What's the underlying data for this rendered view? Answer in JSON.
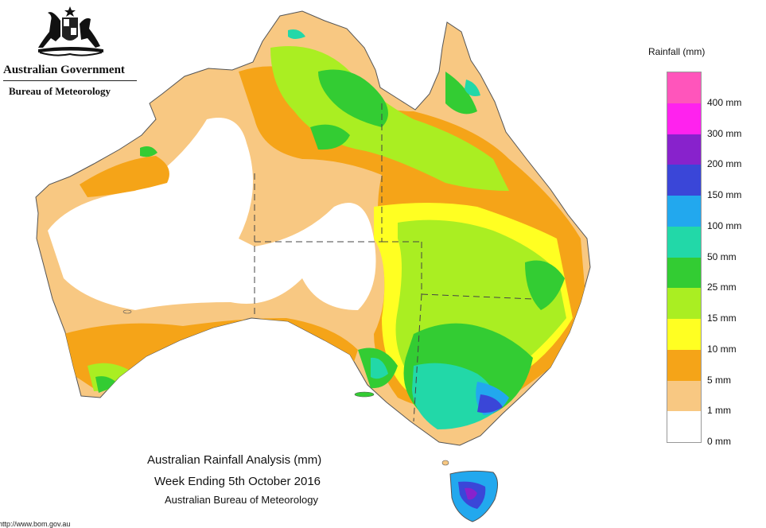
{
  "header": {
    "government": "Australian Government",
    "bureau": "Bureau of Meteorology"
  },
  "legend": {
    "title": "Rainfall (mm)",
    "bins": [
      {
        "label": "400 mm",
        "color": "#ff55bb"
      },
      {
        "label": "300 mm",
        "color": "#ff22ee"
      },
      {
        "label": "200 mm",
        "color": "#8822cc"
      },
      {
        "label": "150 mm",
        "color": "#3a46d8"
      },
      {
        "label": "100 mm",
        "color": "#22a8ee"
      },
      {
        "label": "50 mm",
        "color": "#22d8a8"
      },
      {
        "label": "25 mm",
        "color": "#33cc33"
      },
      {
        "label": "15 mm",
        "color": "#aaee22"
      },
      {
        "label": "10 mm",
        "color": "#ffff22"
      },
      {
        "label": "5 mm",
        "color": "#f5a418"
      },
      {
        "label": "1 mm",
        "color": "#f8c882"
      },
      {
        "label": "0 mm",
        "color": "#ffffff"
      }
    ]
  },
  "title": {
    "line1": "Australian Rainfall Analysis (mm)",
    "line2": "Week Ending 5th October 2016",
    "line3": "Australian Bureau of Meteorology"
  },
  "footer": {
    "url": "http://www.bom.gov.au"
  },
  "icons": {
    "crest": "coat-of-arms-icon"
  }
}
